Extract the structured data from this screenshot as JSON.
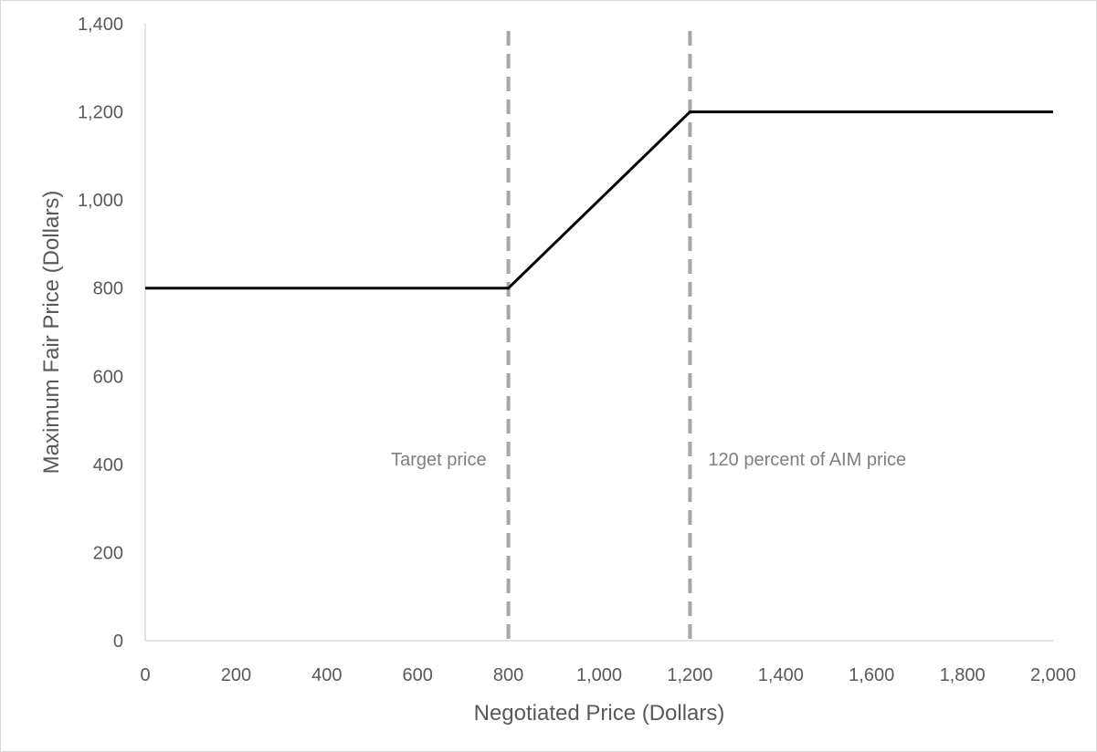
{
  "chart_data": {
    "type": "line",
    "title": "",
    "xlabel": "Negotiated Price (Dollars)",
    "ylabel": "Maximum Fair Price (Dollars)",
    "xlim": [
      0,
      2000
    ],
    "ylim": [
      0,
      1400
    ],
    "x_ticks": [
      0,
      200,
      400,
      600,
      800,
      1000,
      1200,
      1400,
      1600,
      1800,
      2000
    ],
    "y_ticks": [
      0,
      200,
      400,
      600,
      800,
      1000,
      1200,
      1400
    ],
    "x_tick_labels": [
      "0",
      "200",
      "400",
      "600",
      "800",
      "1,000",
      "1,200",
      "1,400",
      "1,600",
      "1,800",
      "2,000"
    ],
    "y_tick_labels": [
      "0",
      "200",
      "400",
      "600",
      "800",
      "1,000",
      "1,200",
      "1,400"
    ],
    "grid": false,
    "legend": "none",
    "series": [
      {
        "x": [
          0,
          800,
          1200,
          2000
        ],
        "y": [
          800,
          800,
          1200,
          1200
        ],
        "color": "#000000"
      }
    ],
    "reference_lines": [
      {
        "x": 800,
        "label": "Target price",
        "label_side": "left",
        "color": "#a6a6a6",
        "style": "dashed"
      },
      {
        "x": 1200,
        "label": "120 percent of AIM price",
        "label_side": "right",
        "color": "#a6a6a6",
        "style": "dashed"
      }
    ]
  }
}
